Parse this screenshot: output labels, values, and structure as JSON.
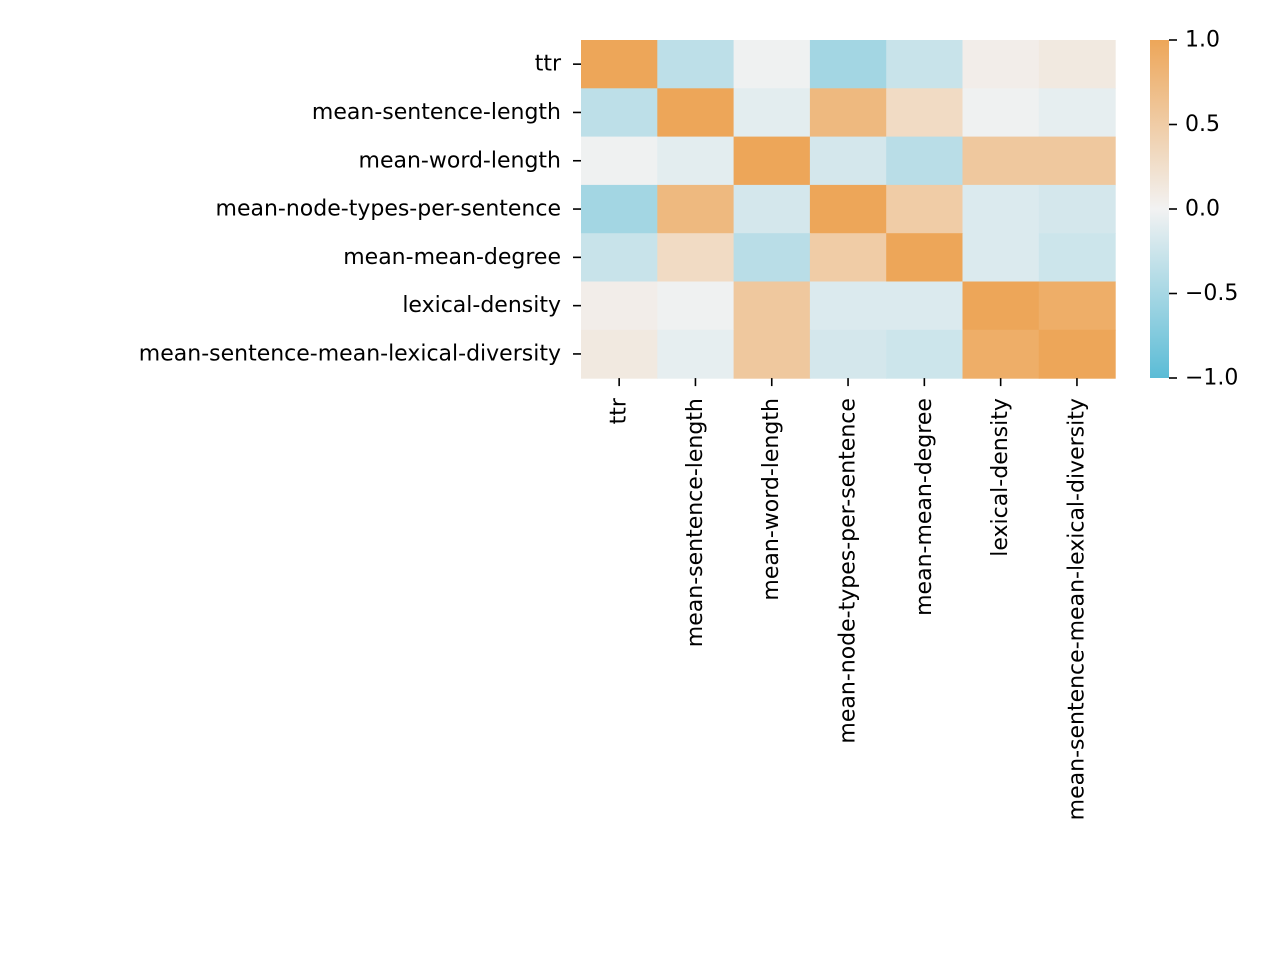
{
  "chart_data": {
    "type": "heatmap",
    "title": "",
    "xlabel": "",
    "ylabel": "",
    "rows": [
      "ttr",
      "mean-sentence-length",
      "mean-word-length",
      "mean-node-types-per-sentence",
      "mean-mean-degree",
      "lexical-density",
      "mean-sentence-mean-lexical-diversity"
    ],
    "columns": [
      "ttr",
      "mean-sentence-length",
      "mean-word-length",
      "mean-node-types-per-sentence",
      "mean-mean-degree",
      "lexical-density",
      "mean-sentence-mean-lexical-diversity"
    ],
    "values": [
      [
        1.0,
        -0.35,
        -0.02,
        -0.52,
        -0.28,
        0.06,
        0.12
      ],
      [
        -0.35,
        1.0,
        -0.1,
        0.75,
        0.3,
        -0.02,
        -0.08
      ],
      [
        -0.02,
        -0.1,
        1.0,
        -0.2,
        -0.38,
        0.55,
        0.55
      ],
      [
        -0.52,
        0.75,
        -0.2,
        1.0,
        0.5,
        -0.15,
        -0.2
      ],
      [
        -0.28,
        0.3,
        -0.38,
        0.5,
        1.0,
        -0.15,
        -0.25
      ],
      [
        0.06,
        -0.02,
        0.55,
        -0.15,
        -0.15,
        1.0,
        0.9
      ],
      [
        0.12,
        -0.08,
        0.55,
        -0.2,
        -0.25,
        0.9,
        1.0
      ]
    ],
    "value_range": [
      -1.0,
      1.0
    ],
    "colormap": {
      "low": "#5bbcd6",
      "mid": "#f2f2f2",
      "high": "#eda659"
    },
    "colorbar": {
      "ticks": [
        1.0,
        0.5,
        0.0,
        -0.5,
        -1.0
      ],
      "tick_labels": [
        "1.0",
        "0.5",
        "0.0",
        "−0.5",
        "−1.0"
      ]
    },
    "grid": false,
    "legend": "colorbar-right"
  }
}
